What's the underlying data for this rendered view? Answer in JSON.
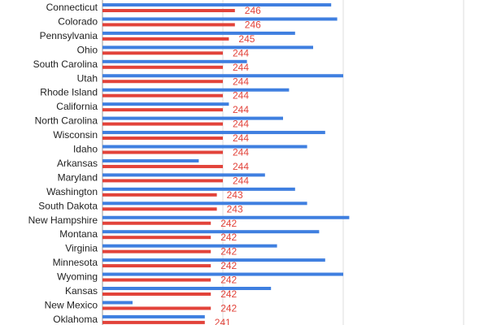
{
  "chart_data": {
    "type": "bar",
    "orientation": "horizontal",
    "grid": true,
    "categories": [
      "Connecticut",
      "Colorado",
      "Pennsylvania",
      "Ohio",
      "South Carolina",
      "Utah",
      "Rhode Island",
      "California",
      "North Carolina",
      "Wisconsin",
      "Idaho",
      "Arkansas",
      "Maryland",
      "Washington",
      "South Dakota",
      "New Hampshire",
      "Montana",
      "Virginia",
      "Minnesota",
      "Wyoming",
      "Kansas",
      "New Mexico",
      "Oklahoma"
    ],
    "series": [
      {
        "color": "#3f7fe0",
        "values": [
          262,
          263,
          256,
          259,
          248,
          264,
          255,
          245,
          254,
          261,
          258,
          240,
          251,
          256,
          258,
          265,
          260,
          253,
          261,
          264,
          252,
          229,
          241
        ]
      },
      {
        "color": "#e2433a",
        "values": [
          246,
          246,
          245,
          244,
          244,
          244,
          244,
          244,
          244,
          244,
          244,
          244,
          244,
          243,
          243,
          242,
          242,
          242,
          242,
          242,
          242,
          242,
          241
        ]
      }
    ],
    "data_labels": [
      "246",
      "246",
      "245",
      "244",
      "244",
      "244",
      "244",
      "244",
      "244",
      "244",
      "244",
      "244",
      "244",
      "243",
      "243",
      "242",
      "242",
      "242",
      "242",
      "242",
      "242",
      "242",
      "241"
    ],
    "label_color": "#e2433a"
  }
}
